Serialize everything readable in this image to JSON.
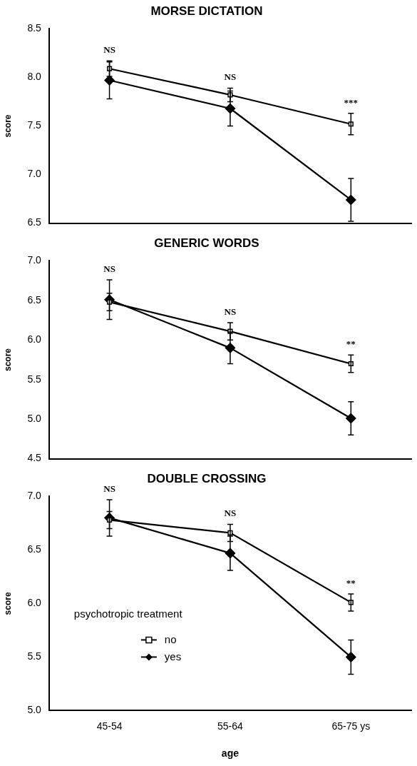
{
  "chart_data": [
    {
      "type": "line",
      "title": "MORSE DICTATION",
      "ylabel": "score",
      "categories": [
        null,
        null,
        null
      ],
      "ylim": [
        6.5,
        8.5
      ],
      "yticks": [
        {
          "value": 6.5,
          "label": "6.5"
        },
        {
          "value": 7,
          "label": "7.0"
        },
        {
          "value": 7.5,
          "label": "7.5"
        },
        {
          "value": 8,
          "label": "8.0"
        },
        {
          "value": 8.5,
          "label": "8.5"
        }
      ],
      "grid": false,
      "legend": false,
      "tick_labels": "y",
      "series": [
        {
          "color": "#000000",
          "marker": "square",
          "values": [
            8.09,
            7.82,
            7.52
          ],
          "errors": [
            0.08,
            0.07,
            0.11
          ]
        },
        {
          "color": "#000000",
          "marker": "diamond",
          "values": [
            7.97,
            7.68,
            6.74
          ],
          "errors": [
            0.19,
            0.18,
            0.22
          ]
        }
      ],
      "annotations": [
        "NS",
        "NS",
        "***"
      ]
    },
    {
      "type": "line",
      "title": "GENERIC WORDS",
      "ylabel": "score",
      "categories": [
        null,
        null,
        null
      ],
      "ylim": [
        4.5,
        7
      ],
      "yticks": [
        {
          "value": 4.5,
          "label": "4.5"
        },
        {
          "value": 5,
          "label": "5.0"
        },
        {
          "value": 5.5,
          "label": "5.5"
        },
        {
          "value": 6,
          "label": "6.0"
        },
        {
          "value": 6.5,
          "label": "6.5"
        },
        {
          "value": 7,
          "label": "7.0"
        }
      ],
      "grid": false,
      "legend": false,
      "tick_labels": "y",
      "series": [
        {
          "color": "#000000",
          "marker": "square",
          "values": [
            6.48,
            6.11,
            5.7
          ],
          "errors": [
            0.11,
            0.11,
            0.11
          ]
        },
        {
          "color": "#000000",
          "marker": "diamond",
          "values": [
            6.51,
            5.9,
            5.01
          ],
          "errors": [
            0.25,
            0.2,
            0.21
          ]
        }
      ],
      "annotations": [
        "NS",
        "NS",
        "**"
      ]
    },
    {
      "type": "line",
      "title": "DOUBLE CROSSING",
      "xlabel": "age",
      "ylabel": "score",
      "legend_title": "psychotropic treatment",
      "categories": [
        "45-54",
        "55-64",
        "65-75 ys"
      ],
      "ylim": [
        5,
        7
      ],
      "yticks": [
        {
          "value": 5,
          "label": "5.0"
        },
        {
          "value": 5.5,
          "label": "5.5"
        },
        {
          "value": 6,
          "label": "6.0"
        },
        {
          "value": 6.5,
          "label": "6.5"
        },
        {
          "value": 7,
          "label": "7.0"
        }
      ],
      "grid": false,
      "legend": "left",
      "series": [
        {
          "name": "no",
          "color": "#000000",
          "marker": "square",
          "values": [
            6.78,
            6.66,
            6.01
          ],
          "errors": [
            0.08,
            0.08,
            0.08
          ]
        },
        {
          "name": "yes",
          "color": "#000000",
          "marker": "diamond",
          "values": [
            6.8,
            6.47,
            5.5
          ],
          "errors": [
            0.17,
            0.16,
            0.16
          ]
        }
      ],
      "annotations": [
        "NS",
        "NS",
        "**"
      ]
    }
  ]
}
